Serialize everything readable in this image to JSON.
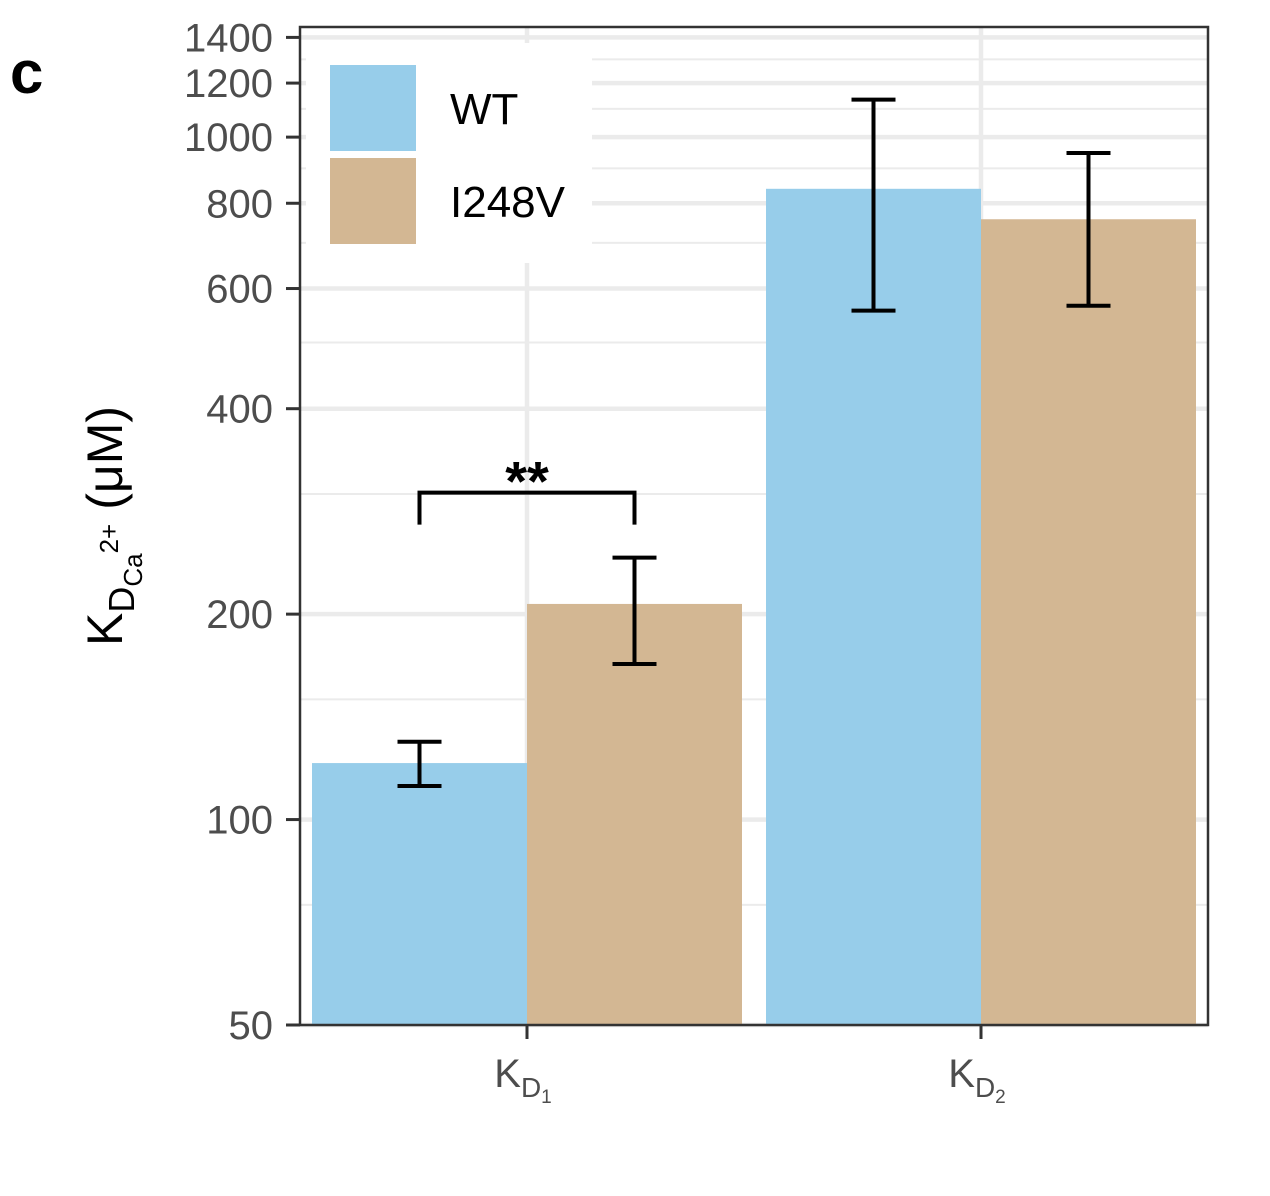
{
  "panel_label": "c",
  "chart_data": {
    "type": "bar",
    "scale_y": "log",
    "ylim": [
      50,
      1450
    ],
    "yticks": [
      50,
      100,
      200,
      400,
      600,
      800,
      1000,
      1200,
      1400
    ],
    "yminor_gridlines": [
      75,
      150,
      300,
      500,
      700,
      900,
      1100,
      1300
    ],
    "grid": true,
    "legend_position": "top-left",
    "ylabel": {
      "main": "K",
      "sub": "D",
      "subsub": "Ca",
      "sup": "2+",
      "unit": "(μM)"
    },
    "categories": [
      {
        "main": "K",
        "sub": "D",
        "subsub": "1"
      },
      {
        "main": "K",
        "sub": "D",
        "subsub": "2"
      }
    ],
    "series": [
      {
        "name": "WT",
        "color": "#97CDEA",
        "values": [
          121,
          840
        ],
        "error_low": [
          112,
          557
        ],
        "error_high": [
          130,
          1135
        ]
      },
      {
        "name": "I248V",
        "color": "#D3B793",
        "values": [
          207,
          758
        ],
        "error_low": [
          169,
          566
        ],
        "error_high": [
          242,
          948
        ]
      }
    ],
    "annotations": [
      {
        "type": "significance",
        "text": "**",
        "category_index": 0
      }
    ]
  }
}
